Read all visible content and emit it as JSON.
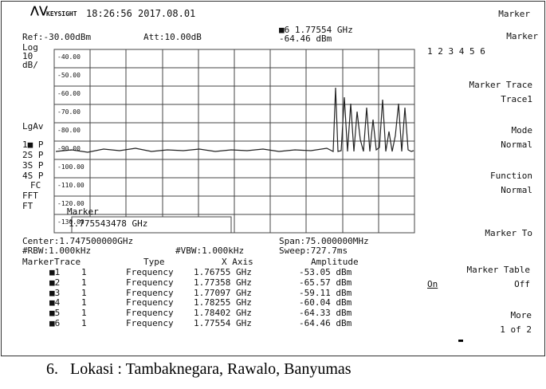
{
  "header": {
    "brand": "KEYSIGHT",
    "datetime": "18:26:56 2017.08.01"
  },
  "settings": {
    "ref": "Ref:-30.00dBm",
    "att": "Att:10.00dB",
    "marker_freq": "■6 1.77554 GHz",
    "marker_amp": "-64.46 dBm"
  },
  "left_labels": [
    "Log",
    "10",
    "dB/",
    "LgAv",
    "1■ P",
    "2S P",
    "3S P",
    "4S P",
    "FC",
    "FFT",
    "FT"
  ],
  "grid_labels": [
    "-40.00",
    "-50.00",
    "-60.00",
    "-70.00",
    "-80.00",
    "-90.00",
    "-100.00",
    "-110.00",
    "-120.00",
    "-130.00"
  ],
  "marker_overlay": {
    "title": "Marker",
    "value": "1.775543478 GHz"
  },
  "footer": {
    "center": "Center:1.747500000GHz",
    "rbw": "#RBW:1.000kHz",
    "vbw": "#VBW:1.000kHz",
    "span": "Span:75.000000MHz",
    "sweep": "Sweep:727.7ms"
  },
  "table": {
    "headers": [
      "Marker",
      "Trace",
      "Type",
      "X Axis",
      "Amplitude"
    ],
    "rows": [
      [
        "■1",
        "1",
        "Frequency",
        "1.76755 GHz",
        "-53.05 dBm"
      ],
      [
        "■2",
        "1",
        "Frequency",
        "1.77358 GHz",
        "-65.57 dBm"
      ],
      [
        "■3",
        "1",
        "Frequency",
        "1.77097 GHz",
        "-59.11 dBm"
      ],
      [
        "■4",
        "1",
        "Frequency",
        "1.78255 GHz",
        "-60.04 dBm"
      ],
      [
        "■5",
        "1",
        "Frequency",
        "1.78402 GHz",
        "-64.33 dBm"
      ],
      [
        "■6",
        "1",
        "Frequency",
        "1.77554 GHz",
        "-64.46 dBm"
      ]
    ]
  },
  "softkeys": {
    "menu_title": "Marker",
    "marker": "Marker",
    "marker_numbers": "1 2 3 4 5 6",
    "marker_trace": "Marker Trace",
    "marker_trace_value": "Trace1",
    "mode": "Mode",
    "mode_value": "Normal",
    "function": "Function",
    "function_value": "Normal",
    "marker_to": "Marker To",
    "marker_table": "Marker Table",
    "on": "On",
    "off": "Off",
    "more": "More",
    "more_value": "1 of 2"
  },
  "caption": "6.   Lokasi : Tambaknegara, Rawalo, Banyumas"
}
